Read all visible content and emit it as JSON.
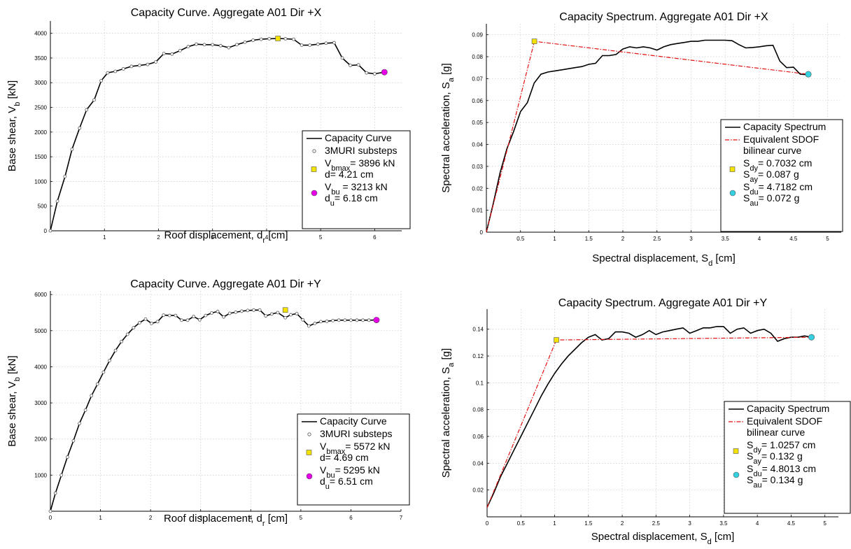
{
  "chart_data": [
    {
      "id": "tl",
      "type": "line",
      "title": "Capacity Curve. Aggregate A01 Dir +X",
      "xlabel": {
        "main": "Roof displacement, d",
        "sub": "r",
        "tail": " [cm]"
      },
      "ylabel": {
        "main": "Base shear, V",
        "sub": "b",
        "tail": " [kN]"
      },
      "xlim": [
        0,
        6.5
      ],
      "ylim": [
        0,
        4250
      ],
      "xticks": [
        1,
        2,
        3,
        4,
        5,
        6
      ],
      "yticks": [
        0,
        500,
        1000,
        1500,
        2000,
        2500,
        3000,
        3500,
        4000
      ],
      "grid": true,
      "legend_position": "lower-right",
      "series": [
        {
          "name": "Capacity Curve",
          "kind": "line",
          "color": "#000000",
          "x": [
            0,
            0.13,
            0.27,
            0.4,
            0.54,
            0.67,
            0.81,
            0.94,
            1.06,
            1.2,
            1.35,
            1.5,
            1.65,
            1.8,
            1.95,
            2.1,
            2.25,
            2.4,
            2.55,
            2.7,
            2.85,
            3.0,
            3.15,
            3.3,
            3.45,
            3.6,
            3.75,
            3.9,
            4.05,
            4.21,
            4.35,
            4.5,
            4.65,
            4.8,
            4.95,
            5.1,
            5.25,
            5.4,
            5.55,
            5.7,
            5.85,
            6.0,
            6.18
          ],
          "y": [
            0,
            600,
            1100,
            1650,
            2080,
            2450,
            2650,
            3040,
            3200,
            3230,
            3280,
            3330,
            3350,
            3370,
            3420,
            3590,
            3580,
            3650,
            3730,
            3780,
            3770,
            3770,
            3750,
            3710,
            3770,
            3820,
            3860,
            3880,
            3890,
            3896,
            3890,
            3880,
            3760,
            3760,
            3780,
            3800,
            3810,
            3500,
            3350,
            3360,
            3200,
            3180,
            3213
          ]
        },
        {
          "name": "3MURI substeps",
          "kind": "markers",
          "marker": "hollow-circle",
          "color": "#555555",
          "same_as_series": 0
        },
        {
          "name": "",
          "kind": "point",
          "marker": "square",
          "color": "#f4e300",
          "x": [
            4.21
          ],
          "y": [
            3896
          ]
        },
        {
          "name": "",
          "kind": "point",
          "marker": "circle",
          "color": "#e600e6",
          "x": [
            6.18
          ],
          "y": [
            3213
          ]
        }
      ],
      "legend": [
        {
          "kind": "line",
          "color": "#000000",
          "lines": [
            [
              {
                "t": "Capacity Curve"
              }
            ]
          ]
        },
        {
          "kind": "hollow",
          "color": "#555555",
          "lines": [
            [
              {
                "t": "3MURI substeps"
              }
            ]
          ]
        },
        {
          "kind": "square",
          "color": "#f4e300",
          "lines": [
            [
              {
                "t": "V"
              },
              {
                "t": "bmax",
                "sub": true
              },
              {
                "t": "= 3896 kN"
              }
            ],
            [
              {
                "t": "d= 4.21 cm"
              }
            ]
          ]
        },
        {
          "kind": "circle",
          "color": "#e600e6",
          "lines": [
            [
              {
                "t": "V"
              },
              {
                "t": "bu",
                "sub": true
              },
              {
                "t": " = 3213 kN"
              }
            ],
            [
              {
                "t": "d"
              },
              {
                "t": "u",
                "sub": true
              },
              {
                "t": "= 6.18 cm"
              }
            ]
          ]
        }
      ]
    },
    {
      "id": "tr",
      "type": "line",
      "title": "Capacity Spectrum. Aggregate A01 Dir +X",
      "xlabel": {
        "main": "Spectral displacement, S",
        "sub": "d",
        "tail": " [cm]"
      },
      "ylabel": {
        "main": "Spectral acceleration, S",
        "sub": "a",
        "tail": " [g]"
      },
      "xlim": [
        0,
        5.2
      ],
      "ylim": [
        0,
        0.095
      ],
      "xticks": [
        0.5,
        1,
        1.5,
        2,
        2.5,
        3,
        3.5,
        4,
        4.5,
        5
      ],
      "yticks": [
        0,
        0.01,
        0.02,
        0.03,
        0.04,
        0.05,
        0.06,
        0.07,
        0.08,
        0.09
      ],
      "grid": true,
      "legend_position": "lower-right",
      "series": [
        {
          "name": "Capacity Spectrum",
          "kind": "line",
          "color": "#000000",
          "x": [
            0,
            0.1,
            0.2,
            0.3,
            0.4,
            0.5,
            0.6,
            0.7,
            0.8,
            0.9,
            1.0,
            1.1,
            1.2,
            1.3,
            1.4,
            1.5,
            1.6,
            1.7,
            1.8,
            1.9,
            2.0,
            2.1,
            2.2,
            2.3,
            2.4,
            2.5,
            2.6,
            2.7,
            2.8,
            2.9,
            3.0,
            3.1,
            3.2,
            3.3,
            3.4,
            3.5,
            3.6,
            3.7,
            3.8,
            3.9,
            4.0,
            4.1,
            4.2,
            4.3,
            4.4,
            4.5,
            4.6,
            4.71
          ],
          "y": [
            0,
            0.013,
            0.027,
            0.038,
            0.046,
            0.055,
            0.059,
            0.068,
            0.072,
            0.073,
            0.0735,
            0.074,
            0.0745,
            0.075,
            0.0755,
            0.0765,
            0.077,
            0.0805,
            0.0805,
            0.081,
            0.0835,
            0.0845,
            0.084,
            0.0845,
            0.084,
            0.083,
            0.0845,
            0.0855,
            0.086,
            0.0865,
            0.087,
            0.087,
            0.0875,
            0.0875,
            0.0875,
            0.0875,
            0.0873,
            0.0855,
            0.084,
            0.0842,
            0.0845,
            0.085,
            0.0852,
            0.078,
            0.075,
            0.0752,
            0.072,
            0.0718
          ]
        },
        {
          "name": "Equivalent SDOF bilinear curve",
          "kind": "dashdot",
          "color": "#e01010",
          "x": [
            0,
            0.7032,
            4.7182
          ],
          "y": [
            0,
            0.087,
            0.072
          ]
        },
        {
          "name": "",
          "kind": "point",
          "marker": "square",
          "color": "#f4e300",
          "x": [
            0.7032
          ],
          "y": [
            0.087
          ]
        },
        {
          "name": "",
          "kind": "point",
          "marker": "circle",
          "color": "#35d0e0",
          "x": [
            4.7182
          ],
          "y": [
            0.072
          ]
        }
      ],
      "legend": [
        {
          "kind": "line",
          "color": "#000000",
          "lines": [
            [
              {
                "t": "Capacity Spectrum"
              }
            ]
          ]
        },
        {
          "kind": "dashdot",
          "color": "#e01010",
          "lines": [
            [
              {
                "t": "Equivalent SDOF"
              }
            ],
            [
              {
                "t": "bilinear curve"
              }
            ]
          ]
        },
        {
          "kind": "square",
          "color": "#f4e300",
          "lines": [
            [
              {
                "t": "S"
              },
              {
                "t": "dy",
                "sub": true
              },
              {
                "t": "= 0.7032 cm"
              }
            ],
            [
              {
                "t": "S"
              },
              {
                "t": "ay",
                "sub": true
              },
              {
                "t": "= 0.087 g"
              }
            ]
          ]
        },
        {
          "kind": "circle",
          "color": "#35d0e0",
          "lines": [
            [
              {
                "t": "S"
              },
              {
                "t": "du",
                "sub": true
              },
              {
                "t": "= 4.7182 cm"
              }
            ],
            [
              {
                "t": "S"
              },
              {
                "t": "au",
                "sub": true
              },
              {
                "t": "= 0.072 g"
              }
            ]
          ]
        }
      ]
    },
    {
      "id": "bl",
      "type": "line",
      "title": "Capacity Curve. Aggregate A01 Dir +Y",
      "xlabel": {
        "main": "Roof displacement, d",
        "sub": "r",
        "tail": " [cm]"
      },
      "ylabel": {
        "main": "Base shear, V",
        "sub": "b",
        "tail": " [kN]"
      },
      "xlim": [
        0,
        7
      ],
      "ylim": [
        0,
        6100
      ],
      "xticks": [
        0,
        1,
        2,
        3,
        4,
        5,
        6,
        7
      ],
      "yticks": [
        1000,
        2000,
        3000,
        4000,
        5000,
        6000
      ],
      "grid": true,
      "legend_position": "lower-right",
      "series": [
        {
          "name": "Capacity Curve",
          "kind": "line",
          "color": "#000000",
          "x": [
            0,
            0.1,
            0.22,
            0.34,
            0.46,
            0.58,
            0.7,
            0.82,
            0.94,
            1.06,
            1.18,
            1.3,
            1.42,
            1.54,
            1.66,
            1.78,
            1.9,
            2.02,
            2.14,
            2.26,
            2.38,
            2.5,
            2.62,
            2.74,
            2.86,
            2.98,
            3.1,
            3.22,
            3.34,
            3.46,
            3.58,
            3.7,
            3.82,
            3.94,
            4.06,
            4.18,
            4.3,
            4.42,
            4.54,
            4.69,
            4.8,
            4.92,
            5.04,
            5.16,
            5.28,
            5.4,
            5.52,
            5.64,
            5.76,
            5.88,
            6.0,
            6.12,
            6.24,
            6.36,
            6.51
          ],
          "y": [
            0,
            500,
            1000,
            1500,
            1950,
            2430,
            2800,
            3200,
            3520,
            3850,
            4170,
            4450,
            4700,
            4900,
            5080,
            5220,
            5320,
            5200,
            5250,
            5430,
            5420,
            5420,
            5290,
            5290,
            5390,
            5300,
            5420,
            5490,
            5530,
            5380,
            5480,
            5510,
            5540,
            5560,
            5570,
            5572,
            5410,
            5460,
            5500,
            5360,
            5440,
            5470,
            5300,
            5130,
            5200,
            5250,
            5260,
            5280,
            5290,
            5290,
            5290,
            5290,
            5290,
            5290,
            5295
          ]
        },
        {
          "name": "3MURI substeps",
          "kind": "markers",
          "marker": "hollow-circle",
          "color": "#555555",
          "same_as_series": 0
        },
        {
          "name": "",
          "kind": "point",
          "marker": "square",
          "color": "#f4e300",
          "x": [
            4.69
          ],
          "y": [
            5572
          ]
        },
        {
          "name": "",
          "kind": "point",
          "marker": "circle",
          "color": "#e600e6",
          "x": [
            6.51
          ],
          "y": [
            5295
          ]
        }
      ],
      "legend": [
        {
          "kind": "line",
          "color": "#000000",
          "lines": [
            [
              {
                "t": "Capacity Curve"
              }
            ]
          ]
        },
        {
          "kind": "hollow",
          "color": "#555555",
          "lines": [
            [
              {
                "t": "3MURI substeps"
              }
            ]
          ]
        },
        {
          "kind": "square",
          "color": "#f4e300",
          "lines": [
            [
              {
                "t": "V"
              },
              {
                "t": "bmax",
                "sub": true
              },
              {
                "t": "= 5572 kN"
              }
            ],
            [
              {
                "t": "d= 4.69 cm"
              }
            ]
          ]
        },
        {
          "kind": "circle",
          "color": "#e600e6",
          "lines": [
            [
              {
                "t": "V"
              },
              {
                "t": "bu",
                "sub": true
              },
              {
                "t": "= 5295 kN"
              }
            ],
            [
              {
                "t": "d"
              },
              {
                "t": "u",
                "sub": true
              },
              {
                "t": "= 6.51 cm"
              }
            ]
          ]
        }
      ]
    },
    {
      "id": "br",
      "type": "line",
      "title": "Capacity Spectrum. Aggregate A01 Dir +Y",
      "xlabel": {
        "main": "Spectral displacement, S",
        "sub": "d",
        "tail": " [cm]"
      },
      "ylabel": {
        "main": "Spectral acceleration, S",
        "sub": "a",
        "tail": " [g]"
      },
      "xlim": [
        0,
        5.2
      ],
      "ylim": [
        0,
        0.155
      ],
      "xticks": [
        0,
        0.5,
        1,
        1.5,
        2,
        2.5,
        3,
        3.5,
        4,
        4.5,
        5
      ],
      "yticks": [
        0.02,
        0.04,
        0.06,
        0.08,
        0.1,
        0.12,
        0.14
      ],
      "grid": true,
      "legend_position": "lower-right",
      "series": [
        {
          "name": "Capacity Spectrum",
          "kind": "line",
          "color": "#000000",
          "x": [
            0,
            0.1,
            0.2,
            0.3,
            0.4,
            0.5,
            0.6,
            0.7,
            0.8,
            0.9,
            1.0,
            1.1,
            1.2,
            1.3,
            1.4,
            1.5,
            1.6,
            1.7,
            1.8,
            1.9,
            2.0,
            2.1,
            2.2,
            2.3,
            2.4,
            2.5,
            2.6,
            2.7,
            2.8,
            2.9,
            3.0,
            3.1,
            3.2,
            3.3,
            3.4,
            3.5,
            3.6,
            3.7,
            3.8,
            3.9,
            4.0,
            4.1,
            4.2,
            4.3,
            4.4,
            4.5,
            4.6,
            4.7,
            4.8
          ],
          "y": [
            0.007,
            0.018,
            0.03,
            0.04,
            0.05,
            0.06,
            0.07,
            0.08,
            0.09,
            0.099,
            0.107,
            0.114,
            0.12,
            0.125,
            0.13,
            0.134,
            0.136,
            0.132,
            0.133,
            0.138,
            0.138,
            0.137,
            0.134,
            0.136,
            0.139,
            0.136,
            0.138,
            0.139,
            0.14,
            0.141,
            0.137,
            0.139,
            0.141,
            0.141,
            0.142,
            0.142,
            0.137,
            0.14,
            0.141,
            0.137,
            0.139,
            0.14,
            0.137,
            0.131,
            0.133,
            0.134,
            0.134,
            0.135,
            0.134
          ]
        },
        {
          "name": "Equivalent SDOF bilinear curve",
          "kind": "dashdot",
          "color": "#e01010",
          "x": [
            0,
            1.0257,
            4.8013
          ],
          "y": [
            0.007,
            0.132,
            0.134
          ]
        },
        {
          "name": "",
          "kind": "point",
          "marker": "square",
          "color": "#f4e300",
          "x": [
            1.0257
          ],
          "y": [
            0.132
          ]
        },
        {
          "name": "",
          "kind": "point",
          "marker": "circle",
          "color": "#35d0e0",
          "x": [
            4.8013
          ],
          "y": [
            0.134
          ]
        }
      ],
      "legend": [
        {
          "kind": "line",
          "color": "#000000",
          "lines": [
            [
              {
                "t": "Capacity Spectrum"
              }
            ]
          ]
        },
        {
          "kind": "dashdot",
          "color": "#e01010",
          "lines": [
            [
              {
                "t": "Equivalent SDOF"
              }
            ],
            [
              {
                "t": "bilinear curve"
              }
            ]
          ]
        },
        {
          "kind": "square",
          "color": "#f4e300",
          "lines": [
            [
              {
                "t": "S"
              },
              {
                "t": "dy",
                "sub": true
              },
              {
                "t": "= 1.0257 cm"
              }
            ],
            [
              {
                "t": "S"
              },
              {
                "t": "ay",
                "sub": true
              },
              {
                "t": "= 0.132 g"
              }
            ]
          ]
        },
        {
          "kind": "circle",
          "color": "#35d0e0",
          "lines": [
            [
              {
                "t": "S"
              },
              {
                "t": "du",
                "sub": true
              },
              {
                "t": "= 4.8013 cm"
              }
            ],
            [
              {
                "t": "S"
              },
              {
                "t": "au",
                "sub": true
              },
              {
                "t": "= 0.134 g"
              }
            ]
          ]
        }
      ]
    }
  ]
}
